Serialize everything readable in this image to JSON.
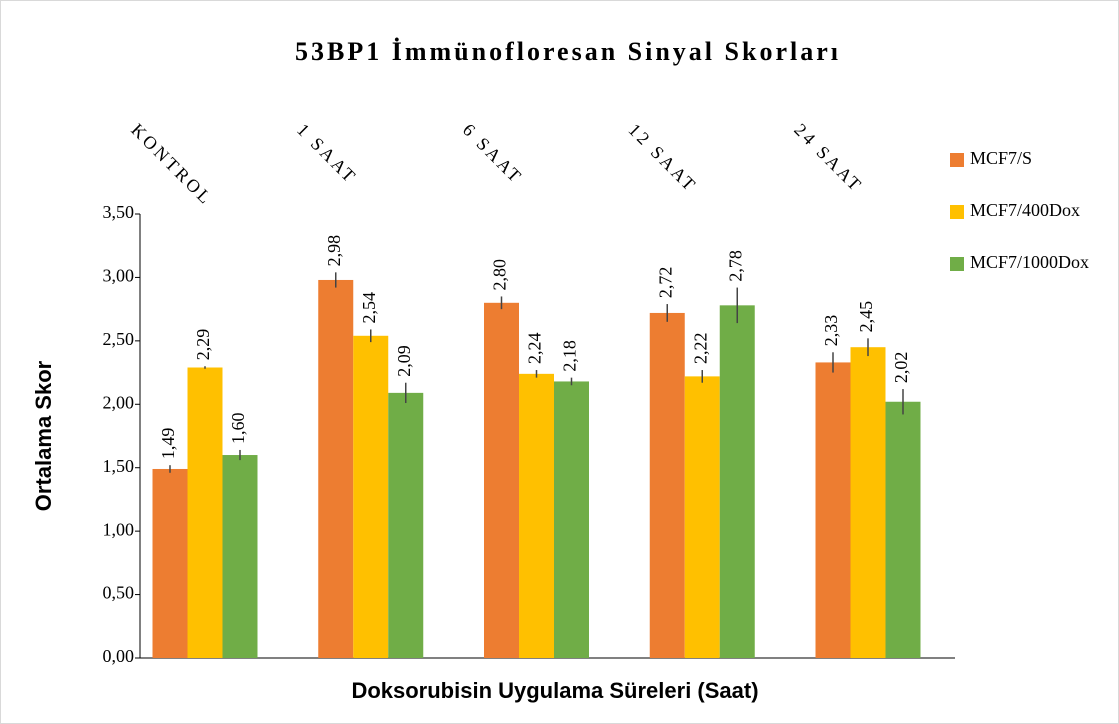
{
  "chart_data": {
    "type": "bar",
    "title": "53BP1 İmmünofloresan Sinyal Skorları",
    "x_label": "Doksorubisin Uygulama Süreleri (Saat)",
    "y_label": "Ortalama Skor",
    "categories": [
      "KONTROL",
      "1 SAAT",
      "6 SAAT",
      "12 SAAT",
      "24 SAAT"
    ],
    "series": [
      {
        "name": "MCF7/S",
        "color": "#ed7d31",
        "values": [
          1.49,
          2.98,
          2.8,
          2.72,
          2.33
        ],
        "value_labels": [
          "1,49",
          "2,98",
          "2,80",
          "2,72",
          "2,33"
        ],
        "errors": [
          0.03,
          0.06,
          0.05,
          0.07,
          0.08
        ]
      },
      {
        "name": "MCF7/400Dox",
        "color": "#ffc000",
        "values": [
          2.29,
          2.54,
          2.24,
          2.22,
          2.45
        ],
        "value_labels": [
          "2,29",
          "2,54",
          "2,24",
          "2,22",
          "2,45"
        ],
        "errors": [
          0.01,
          0.05,
          0.03,
          0.05,
          0.07
        ]
      },
      {
        "name": "MCF7/1000Dox",
        "color": "#70ad47",
        "values": [
          1.6,
          2.09,
          2.18,
          2.78,
          2.02
        ],
        "value_labels": [
          "1,60",
          "2,09",
          "2,18",
          "2,78",
          "2,02"
        ],
        "errors": [
          0.04,
          0.08,
          0.03,
          0.14,
          0.1
        ]
      }
    ],
    "ylim": [
      0,
      3.5
    ],
    "yticks": [
      {
        "value": 0,
        "label": "0,00"
      },
      {
        "value": 0.5,
        "label": "0,50"
      },
      {
        "value": 1,
        "label": "1,00"
      },
      {
        "value": 1.5,
        "label": "1,50"
      },
      {
        "value": 2,
        "label": "2,00"
      },
      {
        "value": 2.5,
        "label": "2,50"
      },
      {
        "value": 3,
        "label": "3,00"
      },
      {
        "value": 3.5,
        "label": "3,50"
      }
    ],
    "legend": "top-right"
  }
}
